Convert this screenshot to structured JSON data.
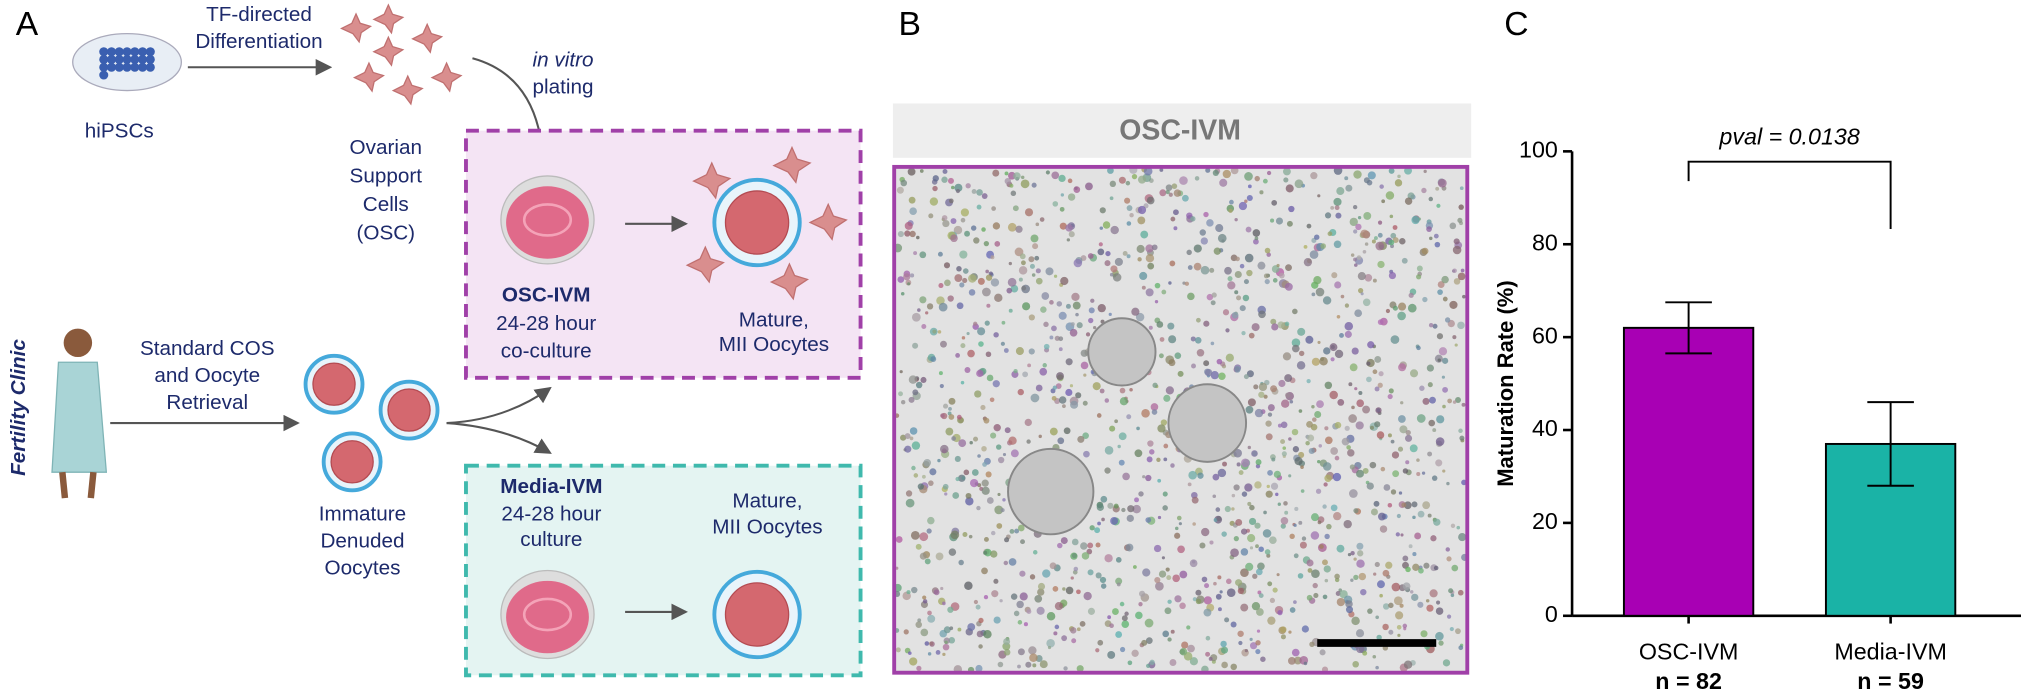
{
  "panel_a": {
    "label": "A",
    "hipsc_label": "hiPSCs",
    "differentiation_label": [
      "TF-directed",
      "Differentiation"
    ],
    "osc_label": [
      "Ovarian",
      "Support",
      "Cells",
      "(OSC)"
    ],
    "plating_label": [
      "in vitro",
      "plating"
    ],
    "osc_ivm": {
      "title": "OSC-IVM",
      "lines": [
        "24-28 hour",
        "co-culture"
      ],
      "result": [
        "Mature,",
        "MII Oocytes"
      ]
    },
    "clinic_label": "Fertility Clinic",
    "retrieval_label": [
      "Standard COS",
      "and Oocyte",
      "Retrieval"
    ],
    "oocytes_label": [
      "Immature",
      "Denuded",
      "Oocytes"
    ],
    "media_ivm": {
      "title": "Media-IVM",
      "lines": [
        "24-28 hour",
        "culture"
      ],
      "result": [
        "Mature,",
        "MII Oocytes"
      ]
    }
  },
  "panel_b": {
    "label": "B",
    "title": "OSC-IVM"
  },
  "chart_data": {
    "type": "bar",
    "panel_label": "C",
    "ylabel": "Maturation Rate (%)",
    "categories": [
      "OSC-IVM",
      "Media-IVM"
    ],
    "sample_labels": [
      "n = 82",
      "n = 59"
    ],
    "values": [
      62,
      37
    ],
    "errors": [
      5.5,
      9
    ],
    "colors": [
      "#a800b4",
      "#1ab3a6"
    ],
    "ylim": [
      0,
      100
    ],
    "yticks": [
      0,
      20,
      40,
      60,
      80,
      100
    ],
    "annotation": "pval = 0.0138"
  }
}
